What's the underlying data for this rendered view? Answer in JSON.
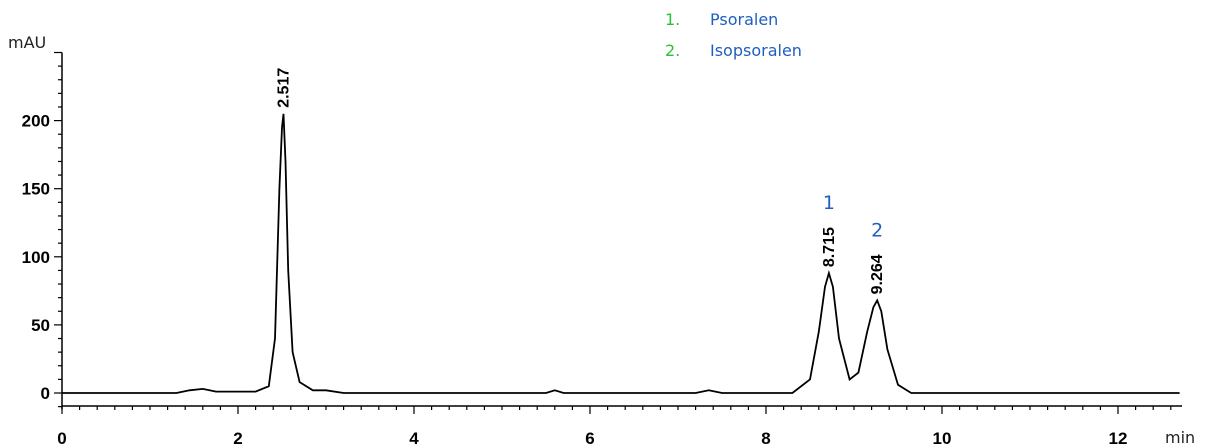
{
  "chart_data": {
    "type": "line",
    "ylabel": "mAU",
    "xlabel": "min",
    "xlim": [
      0,
      12.7
    ],
    "ylim": [
      -10,
      250
    ],
    "x_ticks": [
      0,
      2,
      4,
      6,
      8,
      10,
      12
    ],
    "y_ticks": [
      0,
      50,
      100,
      150,
      200
    ],
    "series": [
      {
        "x": [
          0,
          1.3,
          1.45,
          1.6,
          1.75,
          2.2,
          2.35,
          2.42,
          2.47,
          2.5,
          2.517,
          2.54,
          2.57,
          2.62,
          2.7,
          2.85,
          3.0,
          3.2,
          5.5,
          5.6,
          5.7,
          7.2,
          7.35,
          7.5,
          8.3,
          8.5,
          8.6,
          8.67,
          8.715,
          8.76,
          8.83,
          8.95,
          9.05,
          9.15,
          9.22,
          9.264,
          9.31,
          9.38,
          9.5,
          9.65,
          12.7
        ],
        "y": [
          0,
          0,
          2,
          3,
          1,
          1,
          5,
          40,
          150,
          195,
          205,
          170,
          90,
          30,
          8,
          2,
          2,
          0,
          0,
          2,
          0,
          0,
          2,
          0,
          0,
          10,
          45,
          78,
          88,
          78,
          40,
          10,
          15,
          45,
          63,
          68,
          60,
          32,
          6,
          0,
          0
        ]
      }
    ],
    "peaks": [
      {
        "rt": "2.517",
        "x": 2.517,
        "y": 205,
        "number": ""
      },
      {
        "rt": "8.715",
        "x": 8.715,
        "y": 88,
        "number": "1"
      },
      {
        "rt": "9.264",
        "x": 9.264,
        "y": 68,
        "number": "2"
      }
    ],
    "legend": [
      {
        "num": "1.",
        "name": "Psoralen"
      },
      {
        "num": "2.",
        "name": "Isopsoralen"
      }
    ]
  },
  "colors": {
    "trace": "#000000",
    "axis": "#000000",
    "peak_number": "#1f5fbf",
    "legend_number": "#2bbf3a",
    "legend_name": "#1f5fbf"
  }
}
